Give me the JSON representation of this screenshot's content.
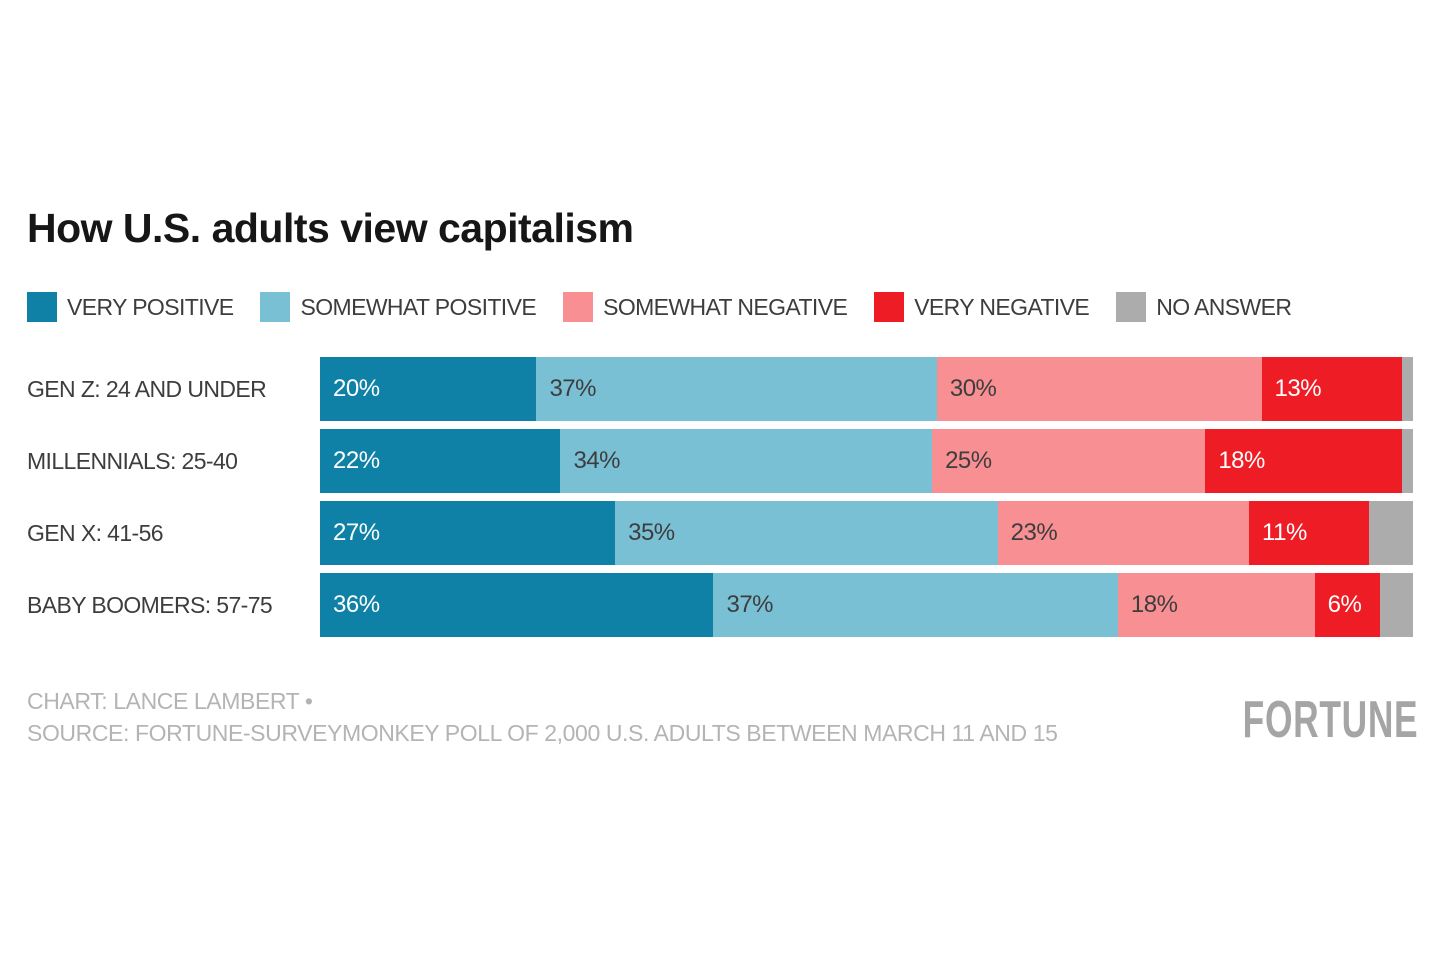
{
  "title": "How U.S. adults view capitalism",
  "colors": {
    "very_positive": "#0f81a6",
    "somewhat_positive": "#7ac0d5",
    "somewhat_negative": "#f78f93",
    "very_negative": "#ee1c25",
    "no_answer": "#acacac",
    "background": "#ffffff",
    "text_dark": "#3d3d3d",
    "footer_gray": "#b4b4b4"
  },
  "chart_data": {
    "type": "bar",
    "stacked": true,
    "orientation": "horizontal",
    "title": "How U.S. adults view capitalism",
    "value_suffix": "%",
    "legend_position": "top",
    "categories": [
      "GEN Z: 24 AND UNDER",
      "MILLENNIALS: 25-40",
      "GEN X: 41-56",
      "BABY BOOMERS: 57-75"
    ],
    "series": [
      {
        "name": "VERY POSITIVE",
        "color": "#0f81a6",
        "label_color": "#ffffff",
        "show_value_labels": true,
        "values": [
          20,
          22,
          27,
          36
        ]
      },
      {
        "name": "SOMEWHAT POSITIVE",
        "color": "#7ac0d5",
        "label_color": "#3d3d3d",
        "show_value_labels": true,
        "values": [
          37,
          34,
          35,
          37
        ]
      },
      {
        "name": "SOMEWHAT NEGATIVE",
        "color": "#f78f93",
        "label_color": "#3d3d3d",
        "show_value_labels": true,
        "values": [
          30,
          25,
          23,
          18
        ]
      },
      {
        "name": "VERY NEGATIVE",
        "color": "#ee1c25",
        "label_color": "#ffffff",
        "show_value_labels": true,
        "values": [
          13,
          18,
          11,
          6
        ]
      },
      {
        "name": "NO ANSWER",
        "color": "#acacac",
        "label_color": "#3d3d3d",
        "show_value_labels": false,
        "values": [
          1,
          1,
          4,
          3
        ]
      }
    ]
  },
  "footer": {
    "credit": "CHART: LANCE LAMBERT •",
    "source": "SOURCE: FORTUNE-SURVEYMONKEY POLL OF 2,000 U.S. ADULTS BETWEEN MARCH 11 AND 15",
    "logo": "FORTUNE"
  }
}
